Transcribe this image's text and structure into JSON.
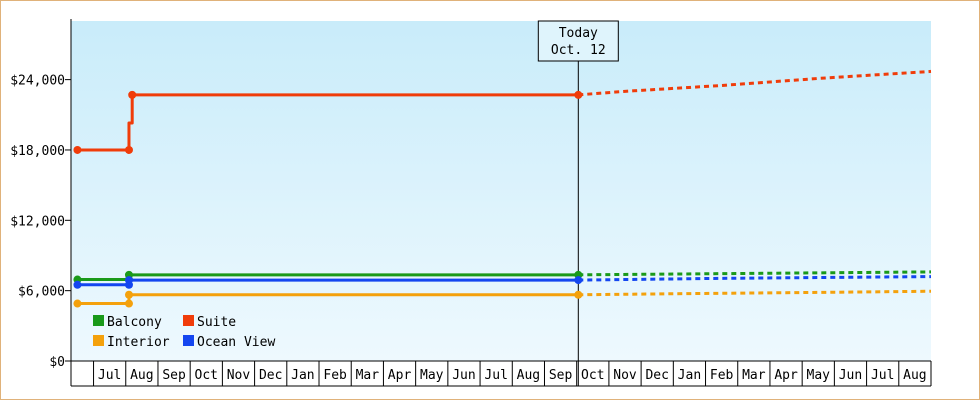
{
  "chart_data": {
    "type": "line",
    "title": "",
    "xlabel": "",
    "ylabel": "",
    "ylim": [
      0,
      29000
    ],
    "y_ticks": [
      {
        "value": 0,
        "label": "$0"
      },
      {
        "value": 6000,
        "label": "$6,000"
      },
      {
        "value": 12000,
        "label": "$12,000"
      },
      {
        "value": 18000,
        "label": "$18,000"
      },
      {
        "value": 24000,
        "label": "$24,000"
      }
    ],
    "x_range": [
      -0.2,
      26.5
    ],
    "month_labels": [
      "Jul",
      "Aug",
      "Sep",
      "Oct",
      "Nov",
      "Dec",
      "Jan",
      "Feb",
      "Mar",
      "Apr",
      "May",
      "Jun",
      "Jul",
      "Aug",
      "Sep",
      "Oct",
      "Nov",
      "Dec",
      "Jan",
      "Feb",
      "Mar",
      "Apr",
      "May",
      "Jun",
      "Jul",
      "Aug"
    ],
    "today": {
      "line1": "Today",
      "line2": "Oct. 12",
      "x": 15.55
    },
    "background_gradient": [
      "#c9ecfa",
      "#eef9fe"
    ],
    "legend_position": "bottom-left",
    "series": [
      {
        "name": "Balcony",
        "color": "#1a9a1a",
        "points": [
          [
            0,
            6950
          ],
          [
            1.6,
            6950
          ],
          [
            1.6,
            7350
          ],
          [
            15.55,
            7350
          ]
        ],
        "markers": [
          [
            0,
            6950
          ],
          [
            1.6,
            6950
          ],
          [
            1.6,
            7350
          ],
          [
            15.55,
            7350
          ]
        ],
        "forecast": [
          [
            15.55,
            7350
          ],
          [
            20,
            7450
          ],
          [
            26.5,
            7600
          ]
        ]
      },
      {
        "name": "Suite",
        "color": "#f03c0a",
        "points": [
          [
            0,
            18000
          ],
          [
            1.6,
            18000
          ],
          [
            1.6,
            20300
          ],
          [
            1.7,
            20300
          ],
          [
            1.7,
            22700
          ],
          [
            15.55,
            22700
          ]
        ],
        "markers": [
          [
            0,
            18000
          ],
          [
            1.6,
            18000
          ],
          [
            1.7,
            22700
          ],
          [
            15.55,
            22700
          ]
        ],
        "forecast": [
          [
            15.55,
            22700
          ],
          [
            17,
            23000
          ],
          [
            20,
            23500
          ],
          [
            23,
            24100
          ],
          [
            26.5,
            24700
          ]
        ]
      },
      {
        "name": "Interior",
        "color": "#f4a10c",
        "points": [
          [
            0,
            4900
          ],
          [
            1.6,
            4900
          ],
          [
            1.6,
            5650
          ],
          [
            15.55,
            5650
          ]
        ],
        "markers": [
          [
            0,
            4900
          ],
          [
            1.6,
            4900
          ],
          [
            1.6,
            5650
          ],
          [
            15.55,
            5650
          ]
        ],
        "forecast": [
          [
            15.55,
            5650
          ],
          [
            19,
            5750
          ],
          [
            23,
            5850
          ],
          [
            26.5,
            5950
          ]
        ]
      },
      {
        "name": "Ocean View",
        "color": "#1446f0",
        "points": [
          [
            0,
            6500
          ],
          [
            1.6,
            6500
          ],
          [
            1.6,
            6900
          ],
          [
            15.55,
            6900
          ]
        ],
        "markers": [
          [
            0,
            6500
          ],
          [
            1.6,
            6500
          ],
          [
            1.6,
            6900
          ],
          [
            15.55,
            6900
          ]
        ],
        "forecast": [
          [
            15.55,
            6900
          ],
          [
            20,
            7050
          ],
          [
            26.5,
            7200
          ]
        ]
      }
    ]
  }
}
